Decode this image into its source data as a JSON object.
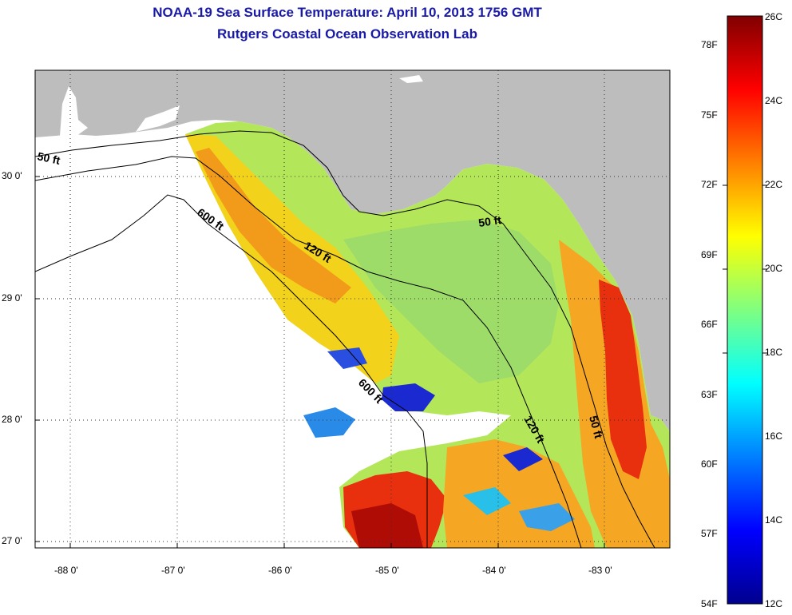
{
  "header": {
    "title": "NOAA-19 Sea Surface Temperature:  April 10, 2013 1756 GMT",
    "subtitle": "Rutgers Coastal Ocean Observation Lab"
  },
  "map": {
    "region": "Florida Big Bend / NE Gulf of Mexico",
    "lon_range": [
      -88.3,
      -82.3
    ],
    "lat_range": [
      26.95,
      30.85
    ],
    "lon_ticks": [
      {
        "value": -88,
        "label": "-88 0'"
      },
      {
        "value": -87,
        "label": "-87 0'"
      },
      {
        "value": -86,
        "label": "-86 0'"
      },
      {
        "value": -85,
        "label": "-85 0'"
      },
      {
        "value": -84,
        "label": "-84 0'"
      },
      {
        "value": -83,
        "label": "-83 0'"
      }
    ],
    "lat_ticks": [
      {
        "value": 30,
        "label": "30 0'"
      },
      {
        "value": 29,
        "label": "29 0'"
      },
      {
        "value": 28,
        "label": "28 0'"
      },
      {
        "value": 27,
        "label": "27 0'"
      }
    ],
    "contour_labels": [
      "50 ft",
      "600 ft",
      "120 ft",
      "50 ft",
      "600 ft",
      "120 ft",
      "50 ft"
    ],
    "colors": {
      "land": "#bdbdbd",
      "no_data": "#ffffff",
      "contour": "#000000"
    }
  },
  "colorbar": {
    "celsius_labels": [
      "26C",
      "24C",
      "22C",
      "20C",
      "18C",
      "16C",
      "14C",
      "12C"
    ],
    "fahrenheit_labels": [
      "78F",
      "75F",
      "72F",
      "69F",
      "66F",
      "63F",
      "60F",
      "57F",
      "54F"
    ],
    "range_c": [
      12,
      26
    ]
  }
}
